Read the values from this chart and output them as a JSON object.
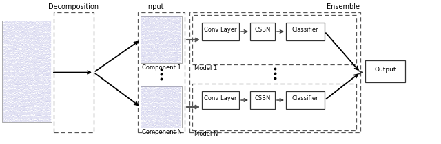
{
  "bg_color": "#ffffff",
  "text_color": "#000000",
  "eeg_line_color": "#aaaadd",
  "labels": {
    "decomposition": "Decomposition",
    "input": "Input",
    "ensemble": "Ensemble",
    "component1": "Component 1",
    "componentN": "Component N",
    "model1": "Model 1",
    "modelN": "Model N",
    "conv_layer": "Conv Layer",
    "csbn": "CSBN",
    "classifier": "Classifier",
    "output": "Output"
  },
  "figsize": [
    6.4,
    2.1
  ],
  "dpi": 100
}
